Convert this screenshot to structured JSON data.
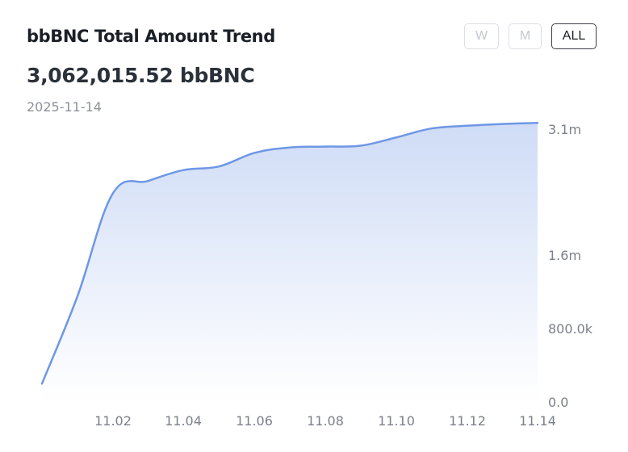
{
  "header": {
    "title": "bbBNC Total Amount Trend",
    "amount": "3,062,015.52 bbBNC",
    "date": "2025-11-14"
  },
  "range_buttons": [
    {
      "label": "W",
      "state": "disabled"
    },
    {
      "label": "M",
      "state": "disabled"
    },
    {
      "label": "ALL",
      "state": "active"
    }
  ],
  "colors": {
    "line": "#6e97e5",
    "fill_top": "#cfdcf6",
    "fill_bottom": "#ffffff",
    "tick_text": "#7b8089"
  },
  "chart_data": {
    "type": "area",
    "title": "bbBNC Total Amount Trend",
    "xlabel": "",
    "ylabel": "",
    "x_tick_labels": [
      "11.02",
      "11.04",
      "11.06",
      "11.08",
      "11.10",
      "11.12",
      "11.14"
    ],
    "y_tick_labels": [
      "3.1m",
      "1.6m",
      "800.0k",
      "0.0"
    ],
    "y_tick_values": [
      3100000,
      1600000,
      800000,
      0
    ],
    "y_scale": "piecewise-linear",
    "ylim": [
      0,
      3100000
    ],
    "grid": false,
    "legend": "none",
    "series": [
      {
        "x": [
          "2025-10-31",
          "2025-11-01",
          "2025-11-02",
          "2025-11-03",
          "2025-11-04",
          "2025-11-05",
          "2025-11-06",
          "2025-11-07",
          "2025-11-08",
          "2025-11-09",
          "2025-11-10",
          "2025-11-11",
          "2025-11-12",
          "2025-11-13",
          "2025-11-14"
        ],
        "values": [
          200000,
          1150000,
          2280000,
          2420000,
          2540000,
          2580000,
          2730000,
          2790000,
          2800000,
          2810000,
          2900000,
          3000000,
          3030000,
          3050000,
          3062015.52
        ]
      }
    ]
  }
}
